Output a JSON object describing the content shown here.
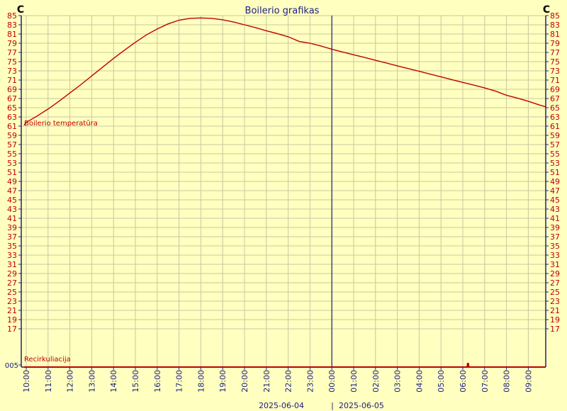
{
  "chart_data": {
    "type": "line",
    "title": "Boilerio grafikas",
    "y_unit_left": "C",
    "y_unit_right": "C",
    "ylim": [
      17,
      85
    ],
    "y_ticks": [
      85,
      83,
      81,
      79,
      77,
      75,
      73,
      71,
      69,
      67,
      65,
      63,
      61,
      59,
      57,
      55,
      53,
      51,
      49,
      47,
      45,
      43,
      41,
      39,
      37,
      35,
      33,
      31,
      29,
      27,
      25,
      23,
      21,
      19,
      17
    ],
    "recirc_tick_label": "005",
    "x_tick_labels": [
      "10:00",
      "11:00",
      "12:00",
      "13:00",
      "14:00",
      "15:00",
      "16:00",
      "17:00",
      "18:00",
      "19:00",
      "20:00",
      "21:00",
      "22:00",
      "23:00",
      "00:00",
      "01:00",
      "02:00",
      "03:00",
      "04:00",
      "05:00",
      "06:00",
      "07:00",
      "08:00",
      "09:00"
    ],
    "date_left": "2025-06-04",
    "date_separator": "|",
    "date_right": "2025-06-05",
    "day_boundary_hour": 14,
    "grid": true,
    "series": [
      {
        "name": "Boilerio temperatūra",
        "color": "#c00000",
        "x_hours_from_first_tick": [
          -0.1,
          0,
          0.5,
          1,
          1.5,
          2,
          2.5,
          3,
          3.5,
          4,
          4.5,
          5,
          5.5,
          6,
          6.5,
          7,
          7.5,
          8,
          8.5,
          9,
          9.5,
          10,
          10.5,
          11,
          11.5,
          12,
          12.5,
          13,
          13.5,
          14,
          14.5,
          15,
          15.5,
          16,
          16.5,
          17,
          17.5,
          18,
          18.5,
          19,
          19.5,
          20,
          20.5,
          21,
          21.5,
          22,
          22.5,
          23,
          23.5,
          23.8
        ],
        "values": [
          61.2,
          61.8,
          63.2,
          64.7,
          66.4,
          68.2,
          70.0,
          71.9,
          73.8,
          75.7,
          77.5,
          79.2,
          80.8,
          82.1,
          83.2,
          84.0,
          84.4,
          84.5,
          84.4,
          84.1,
          83.6,
          83.0,
          82.4,
          81.7,
          81.1,
          80.4,
          79.4,
          79.0,
          78.4,
          77.7,
          77.1,
          76.5,
          75.9,
          75.3,
          74.7,
          74.1,
          73.5,
          72.9,
          72.3,
          71.7,
          71.1,
          70.5,
          69.9,
          69.3,
          68.6,
          67.7,
          67.1,
          66.4,
          65.6,
          65.2
        ]
      },
      {
        "name": "Recirkuliacija",
        "color": "#c00000",
        "x_hours_from_first_tick": [
          -0.1,
          20.2,
          20.22,
          20.25,
          20.28,
          23.8
        ],
        "values": [
          0,
          0,
          1,
          1,
          0,
          0
        ]
      }
    ]
  }
}
